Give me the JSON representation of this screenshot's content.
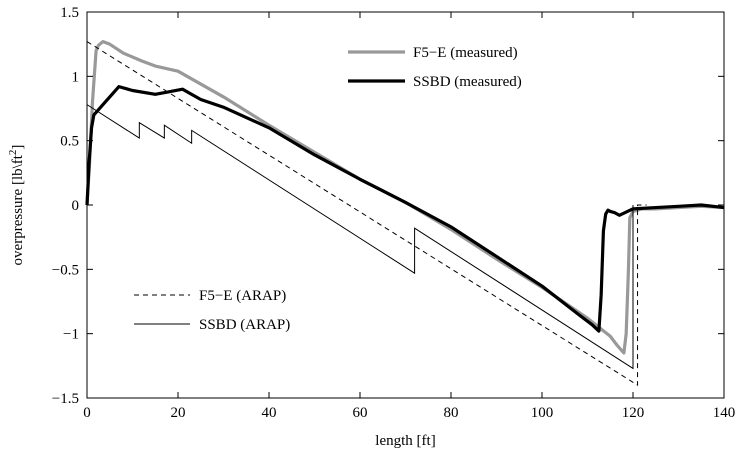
{
  "chart_data": {
    "type": "line",
    "title": "",
    "xlabel": "length [ft]",
    "ylabel": "overpressure [lb\\ft²]",
    "xlim": [
      0,
      140
    ],
    "ylim": [
      -1.5,
      1.5
    ],
    "x_ticks": [
      0,
      20,
      40,
      60,
      80,
      100,
      120,
      140
    ],
    "y_ticks": [
      -1.5,
      -1,
      -0.5,
      0,
      0.5,
      1,
      1.5
    ],
    "x_tick_labels": [
      "0",
      "20",
      "40",
      "60",
      "80",
      "100",
      "120",
      "140"
    ],
    "y_tick_labels": [
      "−1.5",
      "−1",
      "−0.5",
      "0",
      "0.5",
      "1",
      "1.5"
    ],
    "grid": false,
    "legend_upper": [
      "F5−E (measured)",
      "SSBD (measured)"
    ],
    "legend_lower": [
      "F5−E (ARAP)",
      "SSBD (ARAP)"
    ],
    "series": [
      {
        "name": "F5−E (measured)",
        "color": "#999999",
        "style": "thick",
        "x": [
          0,
          0.6,
          1.2,
          2,
          2.5,
          3.5,
          5,
          8,
          12,
          15,
          20,
          25,
          30,
          40,
          50,
          60,
          70,
          80,
          90,
          100,
          110,
          115,
          116.5,
          117.5,
          118,
          118.5,
          119,
          119.3,
          120,
          122,
          125,
          130,
          135,
          140
        ],
        "y": [
          0,
          0.35,
          0.8,
          1.2,
          1.24,
          1.27,
          1.25,
          1.18,
          1.12,
          1.08,
          1.04,
          0.94,
          0.84,
          0.62,
          0.41,
          0.2,
          0.02,
          -0.19,
          -0.42,
          -0.64,
          -0.88,
          -1.02,
          -1.09,
          -1.13,
          -1.15,
          -1.0,
          -0.5,
          -0.1,
          -0.05,
          -0.03,
          -0.03,
          -0.02,
          -0.01,
          -0.02
        ]
      },
      {
        "name": "SSBD (measured)",
        "color": "#000000",
        "style": "thick",
        "x": [
          0,
          0.5,
          1,
          1.5,
          2.5,
          4,
          6,
          7,
          10,
          15,
          18,
          21,
          23,
          25,
          30,
          40,
          50,
          60,
          70,
          80,
          90,
          100,
          108,
          111,
          112.5,
          113,
          113.5,
          114,
          114.5,
          115,
          116,
          117,
          120,
          125,
          130,
          135,
          140
        ],
        "y": [
          0,
          0.35,
          0.6,
          0.7,
          0.74,
          0.8,
          0.88,
          0.92,
          0.89,
          0.86,
          0.88,
          0.9,
          0.86,
          0.82,
          0.76,
          0.6,
          0.39,
          0.2,
          0.02,
          -0.17,
          -0.4,
          -0.63,
          -0.85,
          -0.93,
          -0.98,
          -0.7,
          -0.2,
          -0.07,
          -0.04,
          -0.05,
          -0.06,
          -0.08,
          -0.03,
          -0.02,
          -0.01,
          0,
          -0.02
        ]
      },
      {
        "name": "F5−E (ARAP)",
        "color": "#000000",
        "style": "dashed",
        "x": [
          0,
          121,
          121,
          123
        ],
        "y": [
          1.27,
          -1.4,
          0.0,
          0.0
        ]
      },
      {
        "name": "SSBD (ARAP)",
        "color": "#000000",
        "style": "thin",
        "x": [
          0,
          11.5,
          11.5,
          17,
          17,
          23,
          23,
          72,
          72,
          120,
          120
        ],
        "y": [
          0.78,
          0.52,
          0.64,
          0.52,
          0.62,
          0.48,
          0.58,
          -0.53,
          -0.18,
          -1.27,
          0.0
        ]
      }
    ]
  }
}
